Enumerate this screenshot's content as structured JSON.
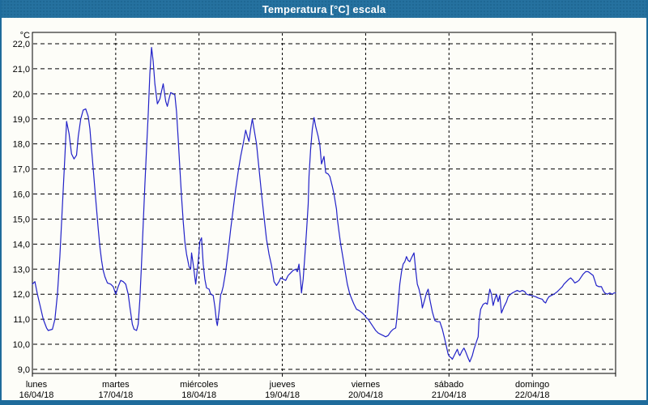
{
  "window": {
    "title": "Temperatura [°C] escala"
  },
  "chart_data": {
    "type": "line",
    "title": "Temperatura [°C] escala",
    "ylabel": "°C",
    "ylim": [
      9.0,
      22.0
    ],
    "ytick_step": 1.0,
    "ytick_labels": [
      "22,0",
      "21,0",
      "20,0",
      "19,0",
      "18,0",
      "17,0",
      "16,0",
      "15,0",
      "14,0",
      "13,0",
      "12,0",
      "11,0",
      "10,0",
      "9,0"
    ],
    "grid": true,
    "x_days": [
      {
        "name": "lunes",
        "date": "16/04/18"
      },
      {
        "name": "martes",
        "date": "17/04/18"
      },
      {
        "name": "miércoles",
        "date": "18/04/18"
      },
      {
        "name": "jueves",
        "date": "19/04/18"
      },
      {
        "name": "viernes",
        "date": "20/04/18"
      },
      {
        "name": "sábado",
        "date": "21/04/18"
      },
      {
        "name": "domingo",
        "date": "22/04/18"
      }
    ],
    "series": [
      {
        "name": "Temperatura",
        "color": "#2121c8",
        "points": [
          [
            0.0,
            12.4
          ],
          [
            0.03,
            12.5
          ],
          [
            0.06,
            12.0
          ],
          [
            0.13,
            11.0
          ],
          [
            0.17,
            10.65
          ],
          [
            0.19,
            10.55
          ],
          [
            0.24,
            10.6
          ],
          [
            0.27,
            11.0
          ],
          [
            0.3,
            12.0
          ],
          [
            0.33,
            13.5
          ],
          [
            0.36,
            15.5
          ],
          [
            0.39,
            17.5
          ],
          [
            0.41,
            18.9
          ],
          [
            0.44,
            18.4
          ],
          [
            0.47,
            17.6
          ],
          [
            0.5,
            17.4
          ],
          [
            0.53,
            17.55
          ],
          [
            0.55,
            18.3
          ],
          [
            0.58,
            19.0
          ],
          [
            0.61,
            19.35
          ],
          [
            0.64,
            19.4
          ],
          [
            0.67,
            19.1
          ],
          [
            0.69,
            18.6
          ],
          [
            0.71,
            17.8
          ],
          [
            0.73,
            17.0
          ],
          [
            0.75,
            16.2
          ],
          [
            0.77,
            15.4
          ],
          [
            0.79,
            14.6
          ],
          [
            0.81,
            13.9
          ],
          [
            0.83,
            13.35
          ],
          [
            0.85,
            12.95
          ],
          [
            0.87,
            12.7
          ],
          [
            0.9,
            12.45
          ],
          [
            0.94,
            12.4
          ],
          [
            0.97,
            12.3
          ],
          [
            1.0,
            12.0
          ],
          [
            1.03,
            12.3
          ],
          [
            1.06,
            12.55
          ],
          [
            1.09,
            12.5
          ],
          [
            1.12,
            12.4
          ],
          [
            1.15,
            12.0
          ],
          [
            1.17,
            11.5
          ],
          [
            1.2,
            10.8
          ],
          [
            1.22,
            10.6
          ],
          [
            1.25,
            10.55
          ],
          [
            1.27,
            10.8
          ],
          [
            1.29,
            11.8
          ],
          [
            1.31,
            13.2
          ],
          [
            1.33,
            14.8
          ],
          [
            1.35,
            16.4
          ],
          [
            1.37,
            17.8
          ],
          [
            1.39,
            19.2
          ],
          [
            1.41,
            20.8
          ],
          [
            1.43,
            21.85
          ],
          [
            1.45,
            21.3
          ],
          [
            1.47,
            20.4
          ],
          [
            1.5,
            19.6
          ],
          [
            1.53,
            19.8
          ],
          [
            1.55,
            20.1
          ],
          [
            1.57,
            20.4
          ],
          [
            1.6,
            19.7
          ],
          [
            1.62,
            19.5
          ],
          [
            1.64,
            19.8
          ],
          [
            1.66,
            20.05
          ],
          [
            1.69,
            20.0
          ],
          [
            1.71,
            19.95
          ],
          [
            1.73,
            19.3
          ],
          [
            1.75,
            18.2
          ],
          [
            1.77,
            17.0
          ],
          [
            1.79,
            15.9
          ],
          [
            1.81,
            14.9
          ],
          [
            1.83,
            14.1
          ],
          [
            1.85,
            13.6
          ],
          [
            1.88,
            13.1
          ],
          [
            1.9,
            13.0
          ],
          [
            1.91,
            13.65
          ],
          [
            1.93,
            13.2
          ],
          [
            1.96,
            12.4
          ],
          [
            1.99,
            13.3
          ],
          [
            2.01,
            14.1
          ],
          [
            2.03,
            14.25
          ],
          [
            2.05,
            13.2
          ],
          [
            2.07,
            12.6
          ],
          [
            2.09,
            12.25
          ],
          [
            2.12,
            12.2
          ],
          [
            2.14,
            12.0
          ],
          [
            2.17,
            11.95
          ],
          [
            2.19,
            11.5
          ],
          [
            2.21,
            10.9
          ],
          [
            2.22,
            10.75
          ],
          [
            2.24,
            11.3
          ],
          [
            2.26,
            12.0
          ],
          [
            2.27,
            12.05
          ],
          [
            2.29,
            12.3
          ],
          [
            2.32,
            12.9
          ],
          [
            2.35,
            13.7
          ],
          [
            2.38,
            14.6
          ],
          [
            2.41,
            15.4
          ],
          [
            2.44,
            16.2
          ],
          [
            2.47,
            16.9
          ],
          [
            2.5,
            17.5
          ],
          [
            2.53,
            18.0
          ],
          [
            2.56,
            18.55
          ],
          [
            2.58,
            18.3
          ],
          [
            2.6,
            18.1
          ],
          [
            2.62,
            18.6
          ],
          [
            2.64,
            19.0
          ],
          [
            2.66,
            18.6
          ],
          [
            2.69,
            18.0
          ],
          [
            2.72,
            17.0
          ],
          [
            2.75,
            16.0
          ],
          [
            2.78,
            15.1
          ],
          [
            2.81,
            14.2
          ],
          [
            2.84,
            13.6
          ],
          [
            2.87,
            13.15
          ],
          [
            2.9,
            12.5
          ],
          [
            2.93,
            12.35
          ],
          [
            2.96,
            12.5
          ],
          [
            2.98,
            12.65
          ],
          [
            3.01,
            12.6
          ],
          [
            3.04,
            12.55
          ],
          [
            3.07,
            12.75
          ],
          [
            3.1,
            12.85
          ],
          [
            3.13,
            12.95
          ],
          [
            3.16,
            13.0
          ],
          [
            3.18,
            12.9
          ],
          [
            3.2,
            13.2
          ],
          [
            3.22,
            12.5
          ],
          [
            3.23,
            12.05
          ],
          [
            3.25,
            12.6
          ],
          [
            3.27,
            13.5
          ],
          [
            3.29,
            14.5
          ],
          [
            3.31,
            15.6
          ],
          [
            3.32,
            16.7
          ],
          [
            3.34,
            17.8
          ],
          [
            3.36,
            18.6
          ],
          [
            3.38,
            19.05
          ],
          [
            3.4,
            18.7
          ],
          [
            3.43,
            18.3
          ],
          [
            3.45,
            17.95
          ],
          [
            3.47,
            17.2
          ],
          [
            3.5,
            17.5
          ],
          [
            3.52,
            16.85
          ],
          [
            3.55,
            16.8
          ],
          [
            3.57,
            16.7
          ],
          [
            3.6,
            16.3
          ],
          [
            3.62,
            16.0
          ],
          [
            3.65,
            15.4
          ],
          [
            3.66,
            15.0
          ],
          [
            3.68,
            14.5
          ],
          [
            3.7,
            14.0
          ],
          [
            3.73,
            13.4
          ],
          [
            3.75,
            13.0
          ],
          [
            3.78,
            12.4
          ],
          [
            3.81,
            12.0
          ],
          [
            3.84,
            11.75
          ],
          [
            3.86,
            11.6
          ],
          [
            3.89,
            11.4
          ],
          [
            3.92,
            11.35
          ],
          [
            3.96,
            11.25
          ],
          [
            3.99,
            11.15
          ],
          [
            4.01,
            11.05
          ],
          [
            4.03,
            11.0
          ],
          [
            4.06,
            10.85
          ],
          [
            4.09,
            10.7
          ],
          [
            4.12,
            10.55
          ],
          [
            4.15,
            10.45
          ],
          [
            4.18,
            10.4
          ],
          [
            4.21,
            10.35
          ],
          [
            4.24,
            10.3
          ],
          [
            4.27,
            10.35
          ],
          [
            4.3,
            10.5
          ],
          [
            4.33,
            10.6
          ],
          [
            4.36,
            10.65
          ],
          [
            4.37,
            10.9
          ],
          [
            4.39,
            11.6
          ],
          [
            4.41,
            12.4
          ],
          [
            4.43,
            12.9
          ],
          [
            4.45,
            13.2
          ],
          [
            4.47,
            13.3
          ],
          [
            4.49,
            13.5
          ],
          [
            4.51,
            13.35
          ],
          [
            4.53,
            13.3
          ],
          [
            4.55,
            13.45
          ],
          [
            4.58,
            13.65
          ],
          [
            4.6,
            13.0
          ],
          [
            4.62,
            12.4
          ],
          [
            4.64,
            12.2
          ],
          [
            4.67,
            11.75
          ],
          [
            4.68,
            11.45
          ],
          [
            4.71,
            11.8
          ],
          [
            4.73,
            12.05
          ],
          [
            4.75,
            12.2
          ],
          [
            4.77,
            11.8
          ],
          [
            4.8,
            11.3
          ],
          [
            4.83,
            10.95
          ],
          [
            4.86,
            10.9
          ],
          [
            4.89,
            10.9
          ],
          [
            4.92,
            10.6
          ],
          [
            4.95,
            10.2
          ],
          [
            4.97,
            9.9
          ],
          [
            4.99,
            9.6
          ],
          [
            5.01,
            9.5
          ],
          [
            5.03,
            9.45
          ],
          [
            5.04,
            9.4
          ],
          [
            5.07,
            9.6
          ],
          [
            5.1,
            9.8
          ],
          [
            5.12,
            9.6
          ],
          [
            5.13,
            9.55
          ],
          [
            5.16,
            9.75
          ],
          [
            5.18,
            9.85
          ],
          [
            5.2,
            9.7
          ],
          [
            5.23,
            9.45
          ],
          [
            5.25,
            9.3
          ],
          [
            5.28,
            9.55
          ],
          [
            5.3,
            9.8
          ],
          [
            5.33,
            10.1
          ],
          [
            5.35,
            10.3
          ],
          [
            5.36,
            10.9
          ],
          [
            5.38,
            11.4
          ],
          [
            5.41,
            11.6
          ],
          [
            5.44,
            11.65
          ],
          [
            5.46,
            11.6
          ],
          [
            5.49,
            12.2
          ],
          [
            5.51,
            12.0
          ],
          [
            5.53,
            11.55
          ],
          [
            5.55,
            11.8
          ],
          [
            5.57,
            12.0
          ],
          [
            5.59,
            11.7
          ],
          [
            5.61,
            11.95
          ],
          [
            5.63,
            11.25
          ],
          [
            5.66,
            11.5
          ],
          [
            5.69,
            11.7
          ],
          [
            5.71,
            11.9
          ],
          [
            5.74,
            12.0
          ],
          [
            5.76,
            12.05
          ],
          [
            5.79,
            12.1
          ],
          [
            5.82,
            12.15
          ],
          [
            5.85,
            12.1
          ],
          [
            5.88,
            12.15
          ],
          [
            5.91,
            12.1
          ],
          [
            5.93,
            12.0
          ],
          [
            5.96,
            11.97
          ],
          [
            5.99,
            11.95
          ],
          [
            6.02,
            11.92
          ],
          [
            6.04,
            11.9
          ],
          [
            6.07,
            11.85
          ],
          [
            6.1,
            11.82
          ],
          [
            6.12,
            11.8
          ],
          [
            6.14,
            11.7
          ],
          [
            6.16,
            11.65
          ],
          [
            6.18,
            11.8
          ],
          [
            6.2,
            11.9
          ],
          [
            6.23,
            11.95
          ],
          [
            6.26,
            12.0
          ],
          [
            6.3,
            12.1
          ],
          [
            6.33,
            12.2
          ],
          [
            6.36,
            12.3
          ],
          [
            6.38,
            12.4
          ],
          [
            6.41,
            12.5
          ],
          [
            6.44,
            12.6
          ],
          [
            6.46,
            12.65
          ],
          [
            6.49,
            12.55
          ],
          [
            6.51,
            12.45
          ],
          [
            6.54,
            12.5
          ],
          [
            6.56,
            12.55
          ],
          [
            6.59,
            12.7
          ],
          [
            6.61,
            12.8
          ],
          [
            6.64,
            12.9
          ],
          [
            6.67,
            12.9
          ],
          [
            6.69,
            12.85
          ],
          [
            6.71,
            12.8
          ],
          [
            6.73,
            12.75
          ],
          [
            6.75,
            12.55
          ],
          [
            6.77,
            12.35
          ],
          [
            6.8,
            12.3
          ],
          [
            6.83,
            12.3
          ],
          [
            6.85,
            12.15
          ],
          [
            6.87,
            12.05
          ],
          [
            6.9,
            12.0
          ],
          [
            6.93,
            12.05
          ],
          [
            6.96,
            12.0
          ],
          [
            6.98,
            12.05
          ],
          [
            7.0,
            12.05
          ]
        ]
      }
    ]
  },
  "colors": {
    "titlebar": "#25719f",
    "line": "#2121c8",
    "grid": "#000000",
    "background": "#fdfdf8"
  }
}
